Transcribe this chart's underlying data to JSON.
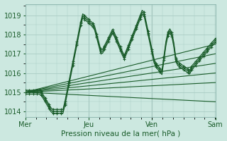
{
  "title": "Pression niveau de la mer( hPa )",
  "bg_color": "#cce8e0",
  "grid_color": "#aaccC4",
  "line_color": "#1a5c2a",
  "marker_color": "#1a5c2a",
  "ylim": [
    1013.7,
    1019.6
  ],
  "yticks": [
    1014,
    1015,
    1016,
    1017,
    1018,
    1019
  ],
  "xtick_labels": [
    "Mer",
    "Jeu",
    "Ven",
    "Sam"
  ],
  "xtick_positions": [
    0.0,
    0.333,
    0.667,
    1.0
  ]
}
